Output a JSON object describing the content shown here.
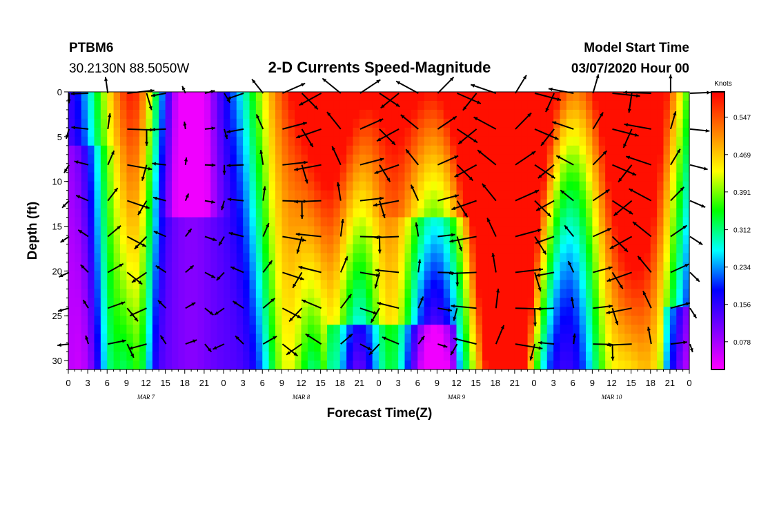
{
  "header": {
    "station": "PTBM6",
    "coords": "30.2130N 88.5050W",
    "title": "2-D Currents Speed-Magnitude",
    "model_start_label": "Model Start Time",
    "model_start_time": "03/07/2020 Hour 00"
  },
  "chart_data": {
    "type": "heatmap",
    "title": "2-D Currents Speed-Magnitude",
    "xlabel": "Forecast Time(Z)",
    "ylabel": "Depth (ft)",
    "x_hours_range": [
      0,
      96
    ],
    "y_range": [
      0,
      31
    ],
    "y_ticks": [
      "0",
      "5",
      "10",
      "15",
      "20",
      "25",
      "30"
    ],
    "x_ticks": [
      "0",
      "3",
      "6",
      "9",
      "12",
      "15",
      "18",
      "21",
      "0",
      "3",
      "6",
      "9",
      "12",
      "15",
      "18",
      "21",
      "0",
      "3",
      "6",
      "9",
      "12",
      "15",
      "18",
      "21",
      "0",
      "3",
      "6",
      "9",
      "12",
      "15",
      "18",
      "21",
      "0"
    ],
    "date_labels": [
      {
        "text": "MAR 7",
        "hour": 12
      },
      {
        "text": "MAR 8",
        "hour": 36
      },
      {
        "text": "MAR 9",
        "hour": 60
      },
      {
        "text": "MAR 10",
        "hour": 84
      }
    ],
    "colorbar": {
      "unit": "Knots",
      "min": 0.02,
      "max": 0.6,
      "ticks": [
        "0.547",
        "0.469",
        "0.391",
        "0.312",
        "0.234",
        "0.156",
        "0.078"
      ],
      "tick_values": [
        0.547,
        0.469,
        0.391,
        0.312,
        0.234,
        0.156,
        0.078
      ]
    },
    "vector_depths": [
      0,
      4,
      8,
      12,
      16,
      20,
      24,
      28
    ],
    "vector_time_step_hours": 3
  },
  "colors": {
    "scale": [
      "#ff00ff",
      "#7f00ff",
      "#0000ff",
      "#00ffff",
      "#00ff00",
      "#ffff00",
      "#ff7f00",
      "#ff0000"
    ],
    "arrow": "#000000",
    "frame": "#000000"
  }
}
